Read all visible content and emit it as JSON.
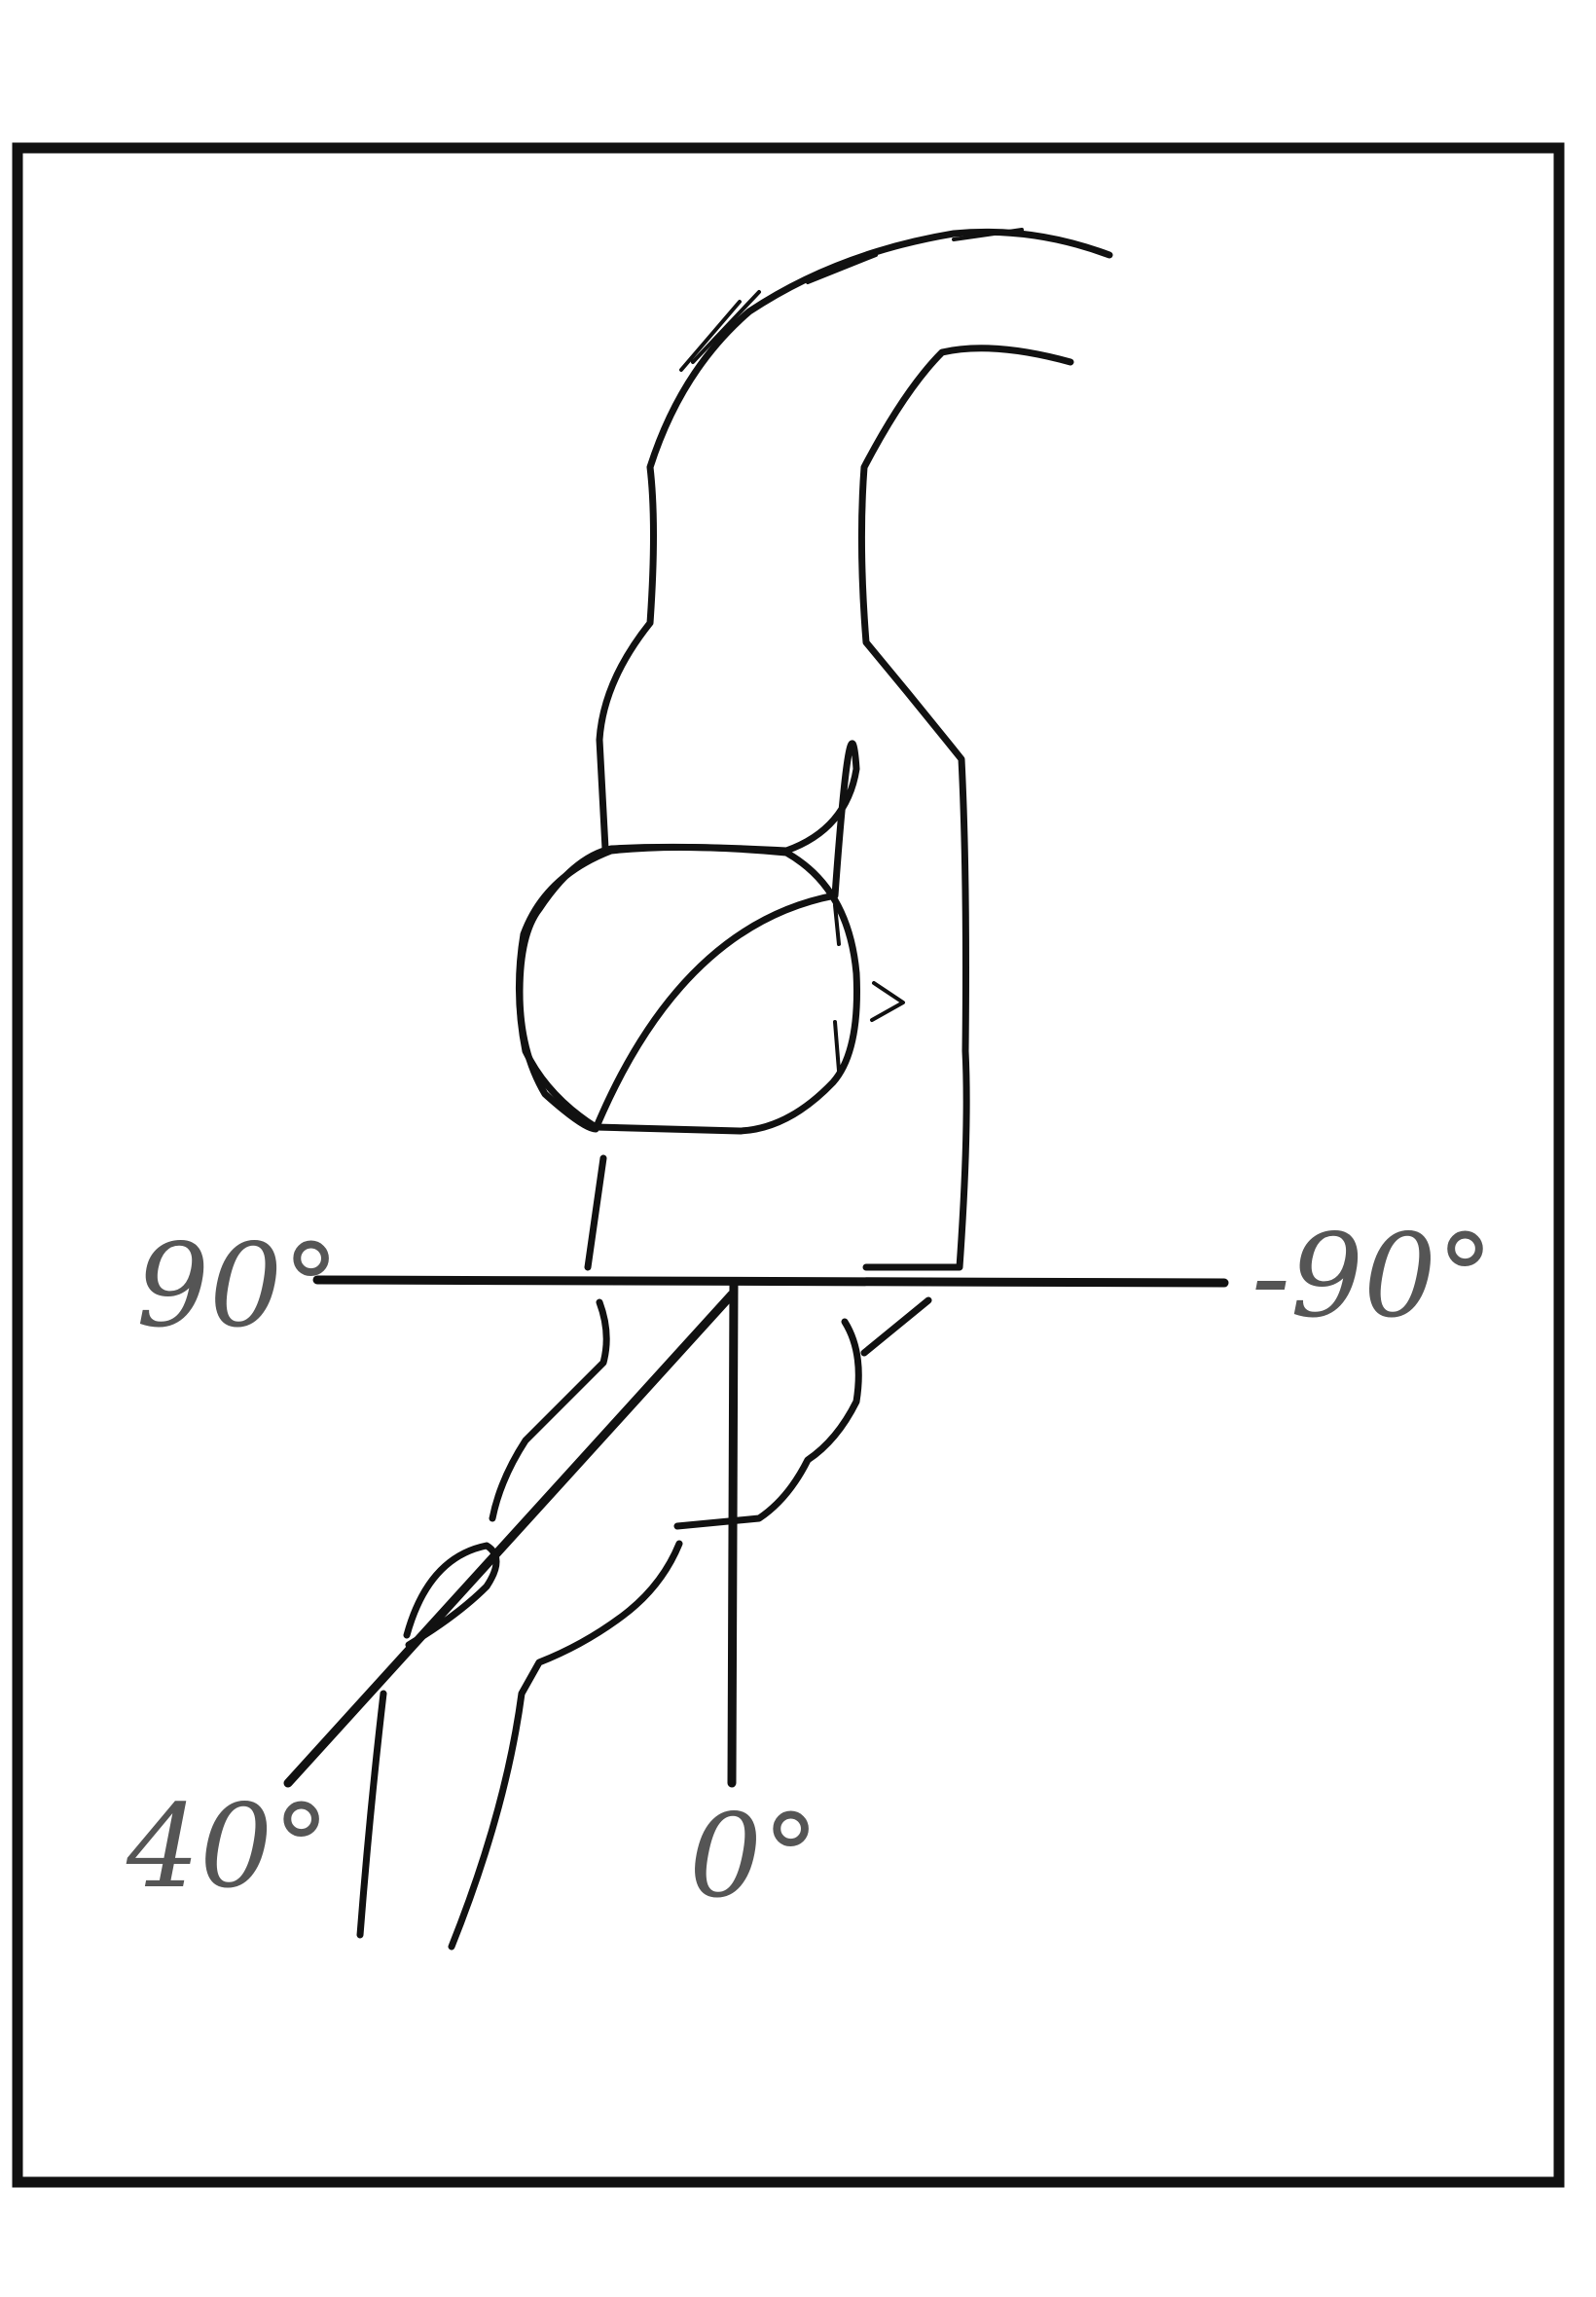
{
  "angle_labels": {
    "left_horizontal": "90°",
    "right_horizontal": "-90°",
    "diagonal": "40°",
    "vertical": "0°"
  },
  "colors": {
    "ink": "#111111",
    "label": "#555555",
    "background": "#ffffff"
  }
}
